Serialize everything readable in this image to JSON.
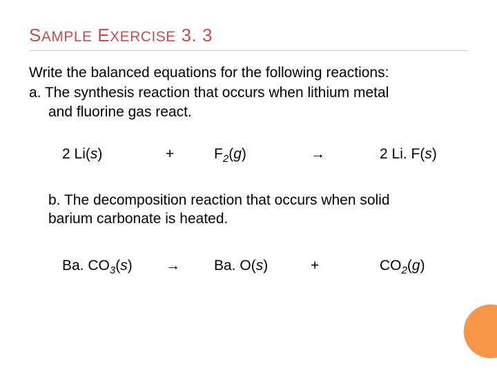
{
  "title": {
    "w1_big": "S",
    "w1_rest": "AMPLE",
    "w2_big": "E",
    "w2_rest": "XERCISE",
    "num": "3. 3",
    "color": "#c0504d",
    "fontsize_big": 26,
    "fontsize_small": 21
  },
  "rule_color": "#cccccc",
  "prompt": "Write the balanced equations for the following reactions:",
  "part_a_line1": "a. The synthesis reaction that occurs when lithium metal",
  "part_a_line2": "and fluorine gas react.",
  "eq1": {
    "t1_a": "2 Li(",
    "t1_b": "s",
    "t1_c": ")",
    "t2": "+",
    "t3_a": "F",
    "t3_sub": "2",
    "t3_b": "(",
    "t3_c": "g",
    "t3_d": ")",
    "t4": "→",
    "t5_a": "2 Li. F(",
    "t5_b": "s",
    "t5_c": ")"
  },
  "part_b": "b. The decomposition reaction that occurs when solid barium carbonate is heated.",
  "eq2": {
    "t1_a": "Ba. CO",
    "t1_sub": "3",
    "t1_b": "(",
    "t1_c": "s",
    "t1_d": ")",
    "t2": "→",
    "t3_a": "Ba. O(",
    "t3_b": "s",
    "t3_c": ")",
    "t4": "+",
    "t5_a": "CO",
    "t5_sub": "2",
    "t5_b": "(",
    "t5_c": "g",
    "t5_d": ")"
  },
  "circle_color": "#f79646",
  "body_fontsize": 21,
  "body_color": "#000000",
  "background": "#ffffff"
}
